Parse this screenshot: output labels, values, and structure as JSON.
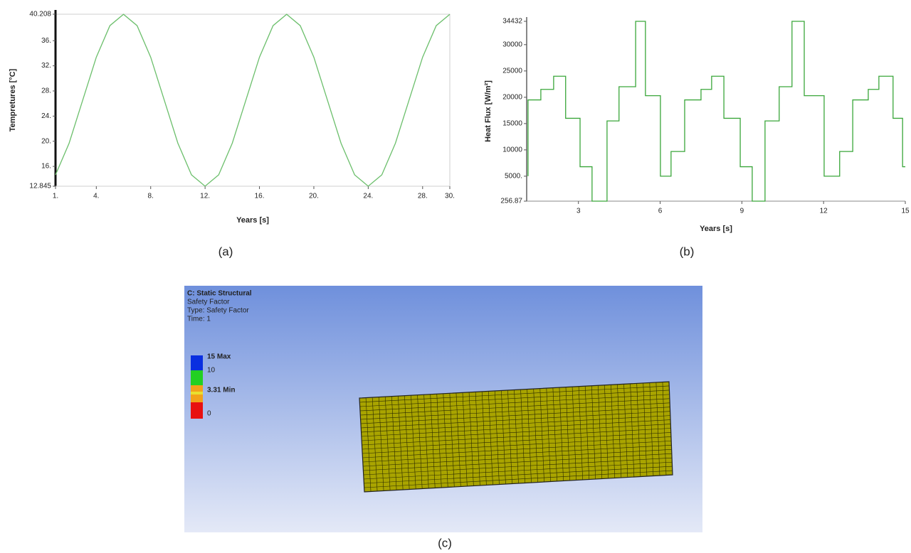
{
  "chart_data": [
    {
      "type": "line",
      "caption": "(a)",
      "x_label": "Years [s]",
      "y_label": "Tempretures [°C]",
      "color": "#6cbf6c",
      "x": [
        1,
        2,
        3,
        4,
        5,
        6,
        7,
        8,
        9,
        10,
        11,
        12,
        13,
        14,
        15,
        16,
        17,
        18,
        19,
        20,
        21,
        22,
        23,
        24,
        25,
        26,
        27,
        28,
        29,
        30
      ],
      "values": [
        14.66,
        19.69,
        26.53,
        33.37,
        38.39,
        40.2,
        38.39,
        33.37,
        26.53,
        19.69,
        14.66,
        12.85,
        14.66,
        19.69,
        26.53,
        33.37,
        38.39,
        40.2,
        38.39,
        33.37,
        26.53,
        19.69,
        14.66,
        12.85,
        14.66,
        19.69,
        26.53,
        33.37,
        38.39,
        40.2
      ],
      "xlim": [
        1,
        30
      ],
      "xticks": [
        {
          "value": 1,
          "label": "1."
        },
        {
          "value": 4,
          "label": "4."
        },
        {
          "value": 8,
          "label": "8."
        },
        {
          "value": 12,
          "label": "12."
        },
        {
          "value": 16,
          "label": "16."
        },
        {
          "value": 20,
          "label": "20."
        },
        {
          "value": 24,
          "label": "24."
        },
        {
          "value": 28,
          "label": "28."
        },
        {
          "value": 30,
          "label": "30."
        }
      ],
      "ylim": [
        12.845,
        40.208
      ],
      "yticks": [
        12.845,
        {
          "value": 16,
          "label": "16."
        },
        {
          "value": 20,
          "label": "20."
        },
        {
          "value": 24,
          "label": "24."
        },
        {
          "value": 28,
          "label": "28."
        },
        {
          "value": 32,
          "label": "32."
        },
        {
          "value": 36,
          "label": "36."
        },
        40.208
      ],
      "grid": false
    },
    {
      "type": "line",
      "caption": "(b)",
      "x_label": "Years [s]",
      "y_label": "Heat Flux [W/m²]",
      "color": "#3aa63a",
      "x": [
        1.15,
        1.15,
        1.62,
        1.62,
        2.09,
        2.09,
        2.53,
        2.53,
        3.06,
        3.06,
        3.5,
        3.5,
        4.05,
        4.05,
        4.49,
        4.49,
        5.1,
        5.1,
        5.46,
        5.46,
        6.01,
        6.01,
        6.4,
        6.4,
        6.9,
        6.9,
        7.5,
        7.5,
        7.89,
        7.89,
        8.34,
        8.34,
        8.94,
        8.94,
        9.38,
        9.38,
        9.85,
        9.85,
        10.37,
        10.37,
        10.84,
        10.84,
        11.29,
        11.29,
        12.02,
        12.02,
        12.59,
        12.59,
        13.07,
        13.07,
        13.64,
        13.64,
        14.03,
        14.03,
        14.55,
        14.55,
        14.9,
        14.9,
        15
      ],
      "values": [
        5000,
        19500,
        19500,
        21500,
        21500,
        24000,
        24000,
        16000,
        16000,
        6800,
        6800,
        256.87,
        256.87,
        15500,
        15500,
        22000,
        22000,
        34432,
        34432,
        20300,
        20300,
        5000,
        5000,
        9700,
        9700,
        19500,
        19500,
        21500,
        21500,
        24000,
        24000,
        16000,
        16000,
        6800,
        6800,
        256.87,
        256.87,
        15500,
        15500,
        22000,
        22000,
        34432,
        34432,
        20300,
        20300,
        5000,
        5000,
        9700,
        9700,
        19500,
        19500,
        21500,
        21500,
        24000,
        24000,
        16000,
        16000,
        6800,
        6800
      ],
      "xlim": [
        1.1,
        15
      ],
      "xticks": [
        3,
        6,
        9,
        12,
        15
      ],
      "ylim": [
        256.87,
        34432
      ],
      "yticks": [
        256.87,
        {
          "value": 5000,
          "label": "5000."
        },
        10000,
        15000,
        20000,
        25000,
        30000,
        34432
      ],
      "grid": false
    }
  ],
  "simulation": {
    "caption": "(c)",
    "title": "C: Static Structural",
    "lines": [
      "Safety Factor",
      "Type: Safety Factor",
      "Time: 1"
    ],
    "legend": [
      "15 Max",
      "10",
      "3.31 Min",
      "0"
    ]
  }
}
